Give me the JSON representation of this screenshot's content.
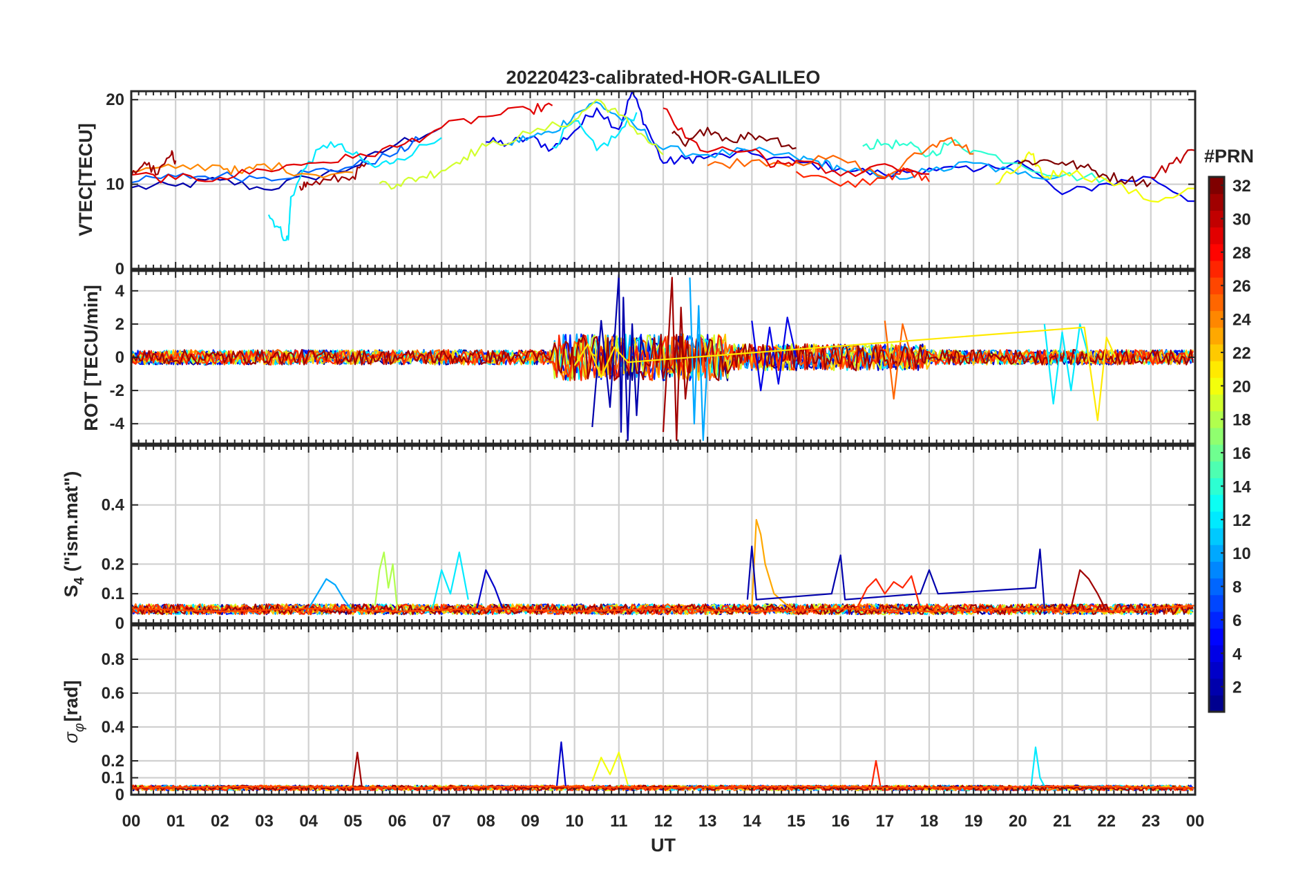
{
  "chart_data": {
    "type": "line",
    "title": "20220423-calibrated-HOR-GALILEO",
    "xlabel": "UT",
    "x_ticks": [
      "00",
      "01",
      "02",
      "03",
      "04",
      "05",
      "06",
      "07",
      "08",
      "09",
      "10",
      "11",
      "12",
      "13",
      "14",
      "15",
      "16",
      "17",
      "18",
      "19",
      "20",
      "21",
      "22",
      "23",
      "00"
    ],
    "x_range_hours": [
      0,
      24
    ],
    "grid": true,
    "colorbar": {
      "label": "#PRN",
      "range": [
        1,
        32
      ],
      "ticks": [
        "2",
        "4",
        "6",
        "8",
        "10",
        "12",
        "14",
        "16",
        "18",
        "20",
        "22",
        "24",
        "26",
        "28",
        "30",
        "32"
      ],
      "colormap": "jet",
      "colors": [
        "#00008f",
        "#0000ff",
        "#007fff",
        "#00ffff",
        "#7fff7f",
        "#ffff00",
        "#ff7f00",
        "#ff0000",
        "#7f0000"
      ]
    },
    "panels": [
      {
        "id": "vtec",
        "ylabel": "VTEC[TECU]",
        "ylim": [
          0,
          21
        ],
        "yticks": [
          "0",
          "10",
          "20"
        ],
        "ytick_values": [
          0,
          10,
          20
        ],
        "series": [
          {
            "prn": 2,
            "x": [
              0.0,
              1.0,
              2.0,
              3.0,
              4.0,
              5.0,
              6.0,
              7.0
            ],
            "y": [
              9.6,
              9.8,
              10.5,
              9.4,
              10.8,
              12.0,
              14.8,
              16.7
            ]
          },
          {
            "prn": 4,
            "x": [
              8.0,
              8.5,
              9.0,
              9.5,
              10.0,
              10.5,
              11.0,
              11.3,
              11.6,
              12.0,
              12.5,
              13.0,
              14.0,
              15.0,
              16.0,
              17.0,
              18.0,
              19.0,
              20.0,
              21.0,
              22.0,
              23.0,
              24.0
            ],
            "y": [
              15.0,
              14.8,
              15.5,
              14.2,
              16.3,
              19.0,
              16.5,
              21.0,
              17.0,
              12.5,
              13.0,
              13.2,
              13.6,
              12.6,
              11.9,
              11.1,
              11.9,
              11.5,
              12.8,
              8.8,
              10.1,
              10.8,
              8.0
            ]
          },
          {
            "prn": 8,
            "x": [
              0.0,
              1.0,
              2.0,
              3.0,
              4.0,
              5.0,
              6.0,
              6.5
            ],
            "y": [
              10.2,
              10.9,
              11.0,
              10.8,
              11.4,
              12.1,
              13.7,
              15.3
            ]
          },
          {
            "prn": 10,
            "x": [
              8.5,
              9.0,
              9.5,
              10.0,
              10.5,
              11.0,
              11.5,
              12.0,
              13.0,
              14.0,
              15.0,
              15.5,
              16.0,
              17.0,
              18.0,
              19.0,
              20.0,
              21.0
            ],
            "y": [
              14.8,
              15.6,
              16.1,
              18.3,
              19.7,
              17.9,
              16.4,
              14.1,
              13.5,
              13.9,
              13.1,
              12.7,
              11.9,
              10.7,
              11.5,
              12.5,
              11.2,
              11.0
            ]
          },
          {
            "prn": 12,
            "x": [
              3.1,
              3.3,
              3.5,
              3.55,
              3.6,
              4.0,
              4.5,
              5.0,
              5.5,
              6.0,
              7.0
            ],
            "y": [
              6.4,
              5.0,
              3.4,
              4.0,
              8.5,
              12.7,
              15.0,
              13.5,
              12.0,
              13.0,
              15.5
            ]
          },
          {
            "prn": 12,
            "x": [
              9.5,
              10.0,
              10.5,
              11.0,
              11.4
            ],
            "y": [
              14.4,
              17.5,
              14.0,
              16.0,
              18.5
            ]
          },
          {
            "prn": 14,
            "x": [
              16.5,
              17.0,
              17.5,
              18.0,
              18.5,
              19.0,
              20.0,
              21.0,
              22.0
            ],
            "y": [
              14.5,
              14.8,
              14.6,
              13.4,
              15.0,
              14.0,
              12.5,
              11.0,
              10.7
            ]
          },
          {
            "prn": 19,
            "x": [
              5.6,
              6.0,
              6.5,
              7.0,
              7.5,
              8.0,
              9.0,
              10.0,
              10.5,
              11.0,
              11.5,
              12.0
            ],
            "y": [
              10.1,
              10.0,
              10.8,
              11.6,
              13.2,
              14.5,
              16.0,
              17.6,
              20.0,
              18.2,
              16.0,
              13.5
            ]
          },
          {
            "prn": 20,
            "x": [
              19.5,
              20.0,
              20.3,
              20.6,
              21.0,
              22.0,
              23.0,
              24.0
            ],
            "y": [
              10.0,
              11.9,
              13.5,
              10.8,
              11.6,
              10.5,
              8.0,
              9.5
            ]
          },
          {
            "prn": 24,
            "x": [
              0.0,
              1.0,
              2.0,
              2.5,
              3.0,
              4.0,
              5.0
            ],
            "y": [
              11.5,
              11.9,
              12.2,
              11.3,
              12.4,
              11.2,
              11.4
            ]
          },
          {
            "prn": 25,
            "x": [
              13.0,
              14.0,
              15.0,
              16.0,
              17.0,
              18.0,
              18.5,
              19.0
            ],
            "y": [
              12.2,
              12.8,
              12.6,
              13.0,
              10.8,
              14.4,
              15.5,
              13.6
            ]
          },
          {
            "prn": 27,
            "x": [
              15.0,
              16.0,
              17.0,
              17.5,
              18.0
            ],
            "y": [
              11.5,
              9.8,
              10.7,
              11.6,
              10.3
            ]
          },
          {
            "prn": 29,
            "x": [
              0.0,
              1.0,
              2.0,
              3.0,
              4.0,
              5.0,
              6.0,
              7.0,
              8.0,
              9.0,
              9.5
            ],
            "y": [
              11.1,
              10.6,
              10.8,
              11.7,
              12.5,
              13.1,
              14.4,
              16.7,
              18.0,
              18.8,
              19.3
            ]
          },
          {
            "prn": 29,
            "x": [
              12.0,
              12.5,
              13.0,
              14.0,
              14.5,
              15.0,
              16.0,
              17.0,
              18.0
            ],
            "y": [
              19.0,
              15.5,
              13.8,
              14.0,
              12.1,
              12.8,
              11.0,
              12.4,
              11.2
            ]
          },
          {
            "prn": 30,
            "x": [
              23.0,
              23.5,
              24.0
            ],
            "y": [
              10.8,
              12.5,
              14.0
            ]
          },
          {
            "prn": 31,
            "x": [
              0.0,
              0.3,
              0.6,
              0.9,
              1.0
            ],
            "y": [
              11.0,
              12.6,
              11.2,
              13.5,
              12.8
            ]
          },
          {
            "prn": 31,
            "x": [
              3.8,
              4.0,
              4.5,
              5.0,
              5.3
            ],
            "y": [
              9.8,
              10.0,
              10.5,
              10.9,
              12.5
            ]
          },
          {
            "prn": 32,
            "x": [
              12.2,
              12.5,
              13.0,
              13.5,
              14.0,
              14.5,
              15.0
            ],
            "y": [
              16.0,
              14.5,
              16.7,
              15.2,
              15.8,
              15.4,
              14.3
            ]
          },
          {
            "prn": 32,
            "x": [
              20.0,
              20.5,
              21.0,
              21.5,
              22.0,
              22.5,
              23.0
            ],
            "y": [
              12.5,
              12.8,
              12.6,
              12.0,
              11.0,
              10.5,
              10.2
            ]
          }
        ]
      },
      {
        "id": "rot",
        "ylabel": "ROT [TECU/min]",
        "ylim": [
          -5.2,
          5.2
        ],
        "yticks": [
          "-4",
          "-2",
          "0",
          "2",
          "4"
        ],
        "ytick_values": [
          -4,
          -2,
          0,
          2,
          4
        ],
        "series": [
          {
            "prn": 2,
            "x": [
              10.4,
              10.6,
              10.8,
              11.0,
              11.05,
              11.1,
              11.2,
              11.3,
              11.4,
              11.5,
              11.6
            ],
            "y": [
              -4.2,
              2.2,
              -3.0,
              5.0,
              -4.5,
              3.6,
              -5.0,
              2.0,
              -3.5,
              1.2,
              0.0
            ]
          },
          {
            "prn": 4,
            "x": [
              14.0,
              14.2,
              14.4,
              14.6,
              14.8,
              15.0
            ],
            "y": [
              2.2,
              -2.0,
              1.8,
              -1.6,
              2.4,
              0.0
            ]
          },
          {
            "prn": 10,
            "x": [
              12.6,
              12.7,
              12.8,
              12.9,
              13.0
            ],
            "y": [
              4.8,
              -4.0,
              3.1,
              -5.0,
              0.0
            ]
          },
          {
            "prn": 12,
            "x": [
              20.6,
              20.8,
              21.0,
              21.2,
              21.4,
              21.6
            ],
            "y": [
              2.0,
              -2.8,
              1.5,
              -2.0,
              2.0,
              0.0
            ]
          },
          {
            "prn": 25,
            "x": [
              17.0,
              17.2,
              17.4,
              17.6
            ],
            "y": [
              2.2,
              -2.5,
              2.0,
              0.0
            ]
          },
          {
            "prn": 31,
            "x": [
              12.0,
              12.2,
              12.3,
              12.4,
              12.5,
              12.6
            ],
            "y": [
              -4.5,
              4.8,
              -5.0,
              3.0,
              -2.5,
              0.0
            ]
          },
          {
            "prn": 21,
            "x": [
              10.0,
              10.3,
              10.6,
              10.9,
              11.2,
              21.5,
              21.8,
              22.0,
              22.2
            ],
            "y": [
              -0.5,
              0.8,
              -1.2,
              0.6,
              -0.3,
              1.8,
              -3.8,
              1.2,
              0.0
            ]
          }
        ]
      },
      {
        "id": "s4",
        "ylabel": "S4 (\"ism.mat\")",
        "ylabel_main": "S",
        "ylabel_sub": "4",
        "ylabel_rest": "(\"ism.mat\")",
        "ylim": [
          0,
          0.6
        ],
        "yticks": [
          "0",
          "0.1",
          "0.2",
          "0.4"
        ],
        "ytick_values": [
          0,
          0.1,
          0.2,
          0.4
        ],
        "series": [
          {
            "prn": 10,
            "x": [
              4.0,
              4.2,
              4.4,
              4.6,
              4.8,
              5.0
            ],
            "y": [
              0.05,
              0.1,
              0.15,
              0.13,
              0.08,
              0.04
            ]
          },
          {
            "prn": 18,
            "x": [
              5.5,
              5.6,
              5.7,
              5.8,
              5.9,
              6.0
            ],
            "y": [
              0.06,
              0.18,
              0.24,
              0.12,
              0.2,
              0.05
            ]
          },
          {
            "prn": 12,
            "x": [
              6.8,
              7.0,
              7.2,
              7.4,
              7.6
            ],
            "y": [
              0.05,
              0.18,
              0.1,
              0.24,
              0.08
            ]
          },
          {
            "prn": 3,
            "x": [
              7.8,
              8.0,
              8.2,
              8.4
            ],
            "y": [
              0.05,
              0.18,
              0.12,
              0.04
            ]
          },
          {
            "prn": 23,
            "x": [
              14.0,
              14.1,
              14.2,
              14.3,
              14.5,
              14.8,
              15.0
            ],
            "y": [
              0.05,
              0.35,
              0.3,
              0.2,
              0.1,
              0.06,
              0.04
            ]
          },
          {
            "prn": 2,
            "x": [
              13.9,
              14.0,
              14.1,
              15.8,
              16.0,
              16.1,
              17.8,
              18.0,
              18.2,
              20.4,
              20.5,
              20.6
            ],
            "y": [
              0.08,
              0.26,
              0.08,
              0.1,
              0.23,
              0.08,
              0.1,
              0.18,
              0.1,
              0.12,
              0.25,
              0.05
            ]
          },
          {
            "prn": 27,
            "x": [
              16.4,
              16.6,
              16.8,
              17.0,
              17.2,
              17.4,
              17.6,
              17.8
            ],
            "y": [
              0.06,
              0.12,
              0.15,
              0.1,
              0.14,
              0.12,
              0.16,
              0.05
            ]
          },
          {
            "prn": 31,
            "x": [
              21.2,
              21.4,
              21.6,
              21.8,
              22.0
            ],
            "y": [
              0.05,
              0.18,
              0.15,
              0.1,
              0.04
            ]
          },
          {
            "prn": 26,
            "x": [
              0.0,
              2.0,
              4.0,
              6.0,
              8.0,
              10.0,
              12.0,
              14.0,
              16.0,
              18.0,
              20.0,
              22.0,
              24.0
            ],
            "y": [
              0.05,
              0.04,
              0.05,
              0.04,
              0.05,
              0.04,
              0.05,
              0.04,
              0.05,
              0.04,
              0.05,
              0.04,
              0.06
            ]
          }
        ]
      },
      {
        "id": "sigma_phi",
        "ylabel": "σφ[rad]",
        "ylabel_main": "σ",
        "ylabel_sub": "φ",
        "ylabel_rest": "[rad]",
        "ylim": [
          0,
          1.0
        ],
        "yticks": [
          "0",
          "0.1",
          "0.2",
          "0.4",
          "0.6",
          "0.8"
        ],
        "ytick_values": [
          0,
          0.1,
          0.2,
          0.4,
          0.6,
          0.8
        ],
        "series": [
          {
            "prn": 31,
            "x": [
              5.0,
              5.1,
              5.2
            ],
            "y": [
              0.05,
              0.25,
              0.05
            ]
          },
          {
            "prn": 3,
            "x": [
              9.6,
              9.7,
              9.8
            ],
            "y": [
              0.05,
              0.31,
              0.05
            ]
          },
          {
            "prn": 20,
            "x": [
              10.4,
              10.6,
              10.8,
              11.0,
              11.2
            ],
            "y": [
              0.08,
              0.22,
              0.12,
              0.25,
              0.06
            ]
          },
          {
            "prn": 12,
            "x": [
              20.3,
              20.4,
              20.5,
              20.6
            ],
            "y": [
              0.05,
              0.28,
              0.1,
              0.05
            ]
          },
          {
            "prn": 27,
            "x": [
              16.7,
              16.8,
              16.9
            ],
            "y": [
              0.05,
              0.2,
              0.05
            ]
          },
          {
            "prn": 26,
            "x": [
              0.0,
              3.0,
              6.0,
              9.0,
              12.0,
              15.0,
              18.0,
              21.0,
              24.0
            ],
            "y": [
              0.04,
              0.05,
              0.04,
              0.05,
              0.04,
              0.05,
              0.04,
              0.05,
              0.04
            ]
          }
        ]
      }
    ]
  }
}
